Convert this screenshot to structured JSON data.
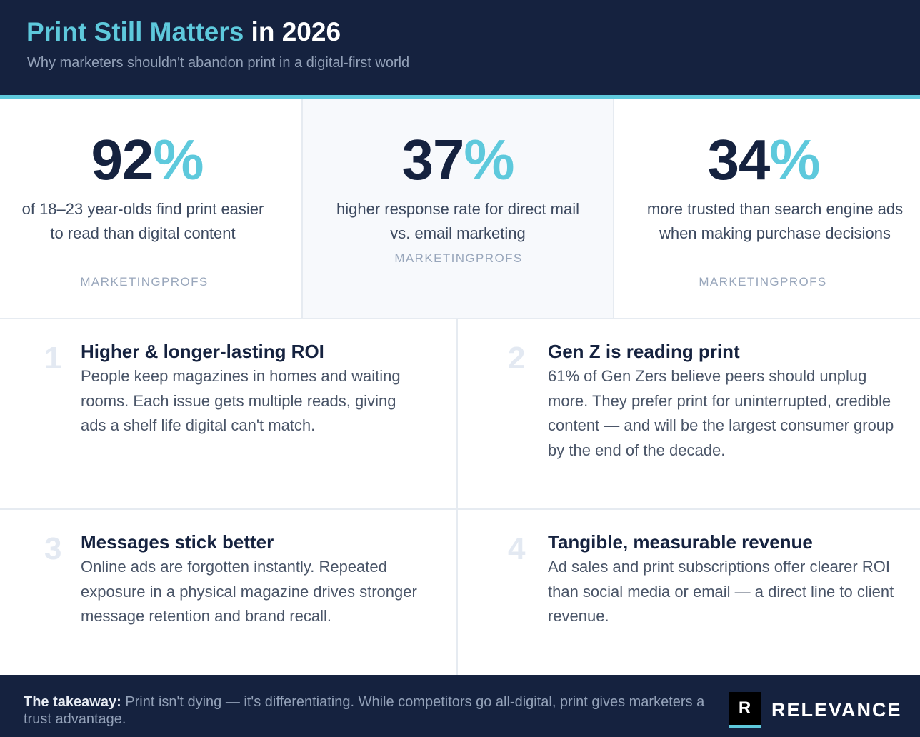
{
  "header": {
    "title_accent": "Print Still Matters",
    "title_rest": " in 2026",
    "subtitle": "Why marketers shouldn't abandon print in a digital-first world"
  },
  "stats": [
    {
      "value": "92",
      "unit": "%",
      "description": "of 18–23 year-olds find print easier to read than digital content",
      "source": "MARKETINGPROFS"
    },
    {
      "value": "37",
      "unit": "%",
      "description": "higher response rate for direct mail vs. email marketing",
      "source": "MARKETINGPROFS"
    },
    {
      "value": "34",
      "unit": "%",
      "description": "more trusted than search engine ads when making purchase decisions",
      "source": "MARKETINGPROFS"
    }
  ],
  "points": [
    {
      "index": "1",
      "title": "Higher & longer-lasting ROI",
      "body": "People keep magazines in homes and waiting rooms. Each issue gets multiple reads, giving ads a shelf life digital can't match."
    },
    {
      "index": "2",
      "title": "Gen Z is reading print",
      "body": "61% of Gen Zers believe peers should unplug more. They prefer print for uninterrupted, credible content — and will be the largest consumer group by the end of the decade."
    },
    {
      "index": "3",
      "title": "Messages stick better",
      "body": "Online ads are forgotten instantly. Repeated exposure in a physical magazine drives stronger message retention and brand recall."
    },
    {
      "index": "4",
      "title": "Tangible, measurable revenue",
      "body": "Ad sales and print subscriptions offer clearer ROI than social media or email — a direct line to client revenue."
    }
  ],
  "footer": {
    "takeaway_lead": "The takeaway:",
    "takeaway_text": " Print isn't dying — it's differentiating. While competitors go all-digital, print gives marketers a trust advantage.",
    "logo_mark": "R",
    "logo_word": "RELEVANCE"
  },
  "colors": {
    "navy": "#15223f",
    "accent": "#5ec9dc",
    "muted": "#93a1b8"
  }
}
